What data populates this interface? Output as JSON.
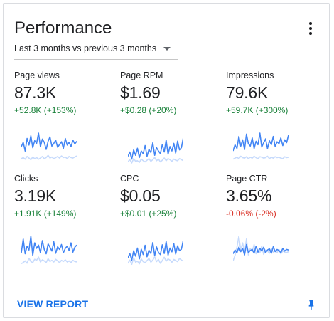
{
  "card": {
    "title": "Performance",
    "menu_icon": "more-vert-icon",
    "period": {
      "label": "Last 3 months vs previous 3 months",
      "icon": "dropdown-caret-icon"
    }
  },
  "colors": {
    "accent": "#1a73e8",
    "current_series": "#4285f4",
    "previous_series": "#c6dafc",
    "positive": "#188038",
    "negative": "#d93025"
  },
  "metrics": [
    {
      "label": "Page views",
      "value": "87.3K",
      "change": "+52.8K (+153%)",
      "trend": "positive",
      "current": [
        30,
        38,
        22,
        45,
        33,
        50,
        28,
        41,
        36,
        55,
        30,
        44,
        38,
        25,
        40,
        48,
        31,
        36,
        42,
        29,
        34,
        39,
        27,
        45,
        33,
        38,
        30,
        42,
        35,
        40
      ],
      "previous": [
        8,
        10,
        7,
        12,
        9,
        6,
        11,
        8,
        10,
        7,
        9,
        12,
        8,
        10,
        14,
        9,
        11,
        8,
        10,
        12,
        9,
        13,
        10,
        11,
        8,
        12,
        10,
        9,
        11,
        13
      ]
    },
    {
      "label": "Page RPM",
      "value": "$1.69",
      "change": "+$0.28 (+20%)",
      "trend": "positive",
      "current": [
        20,
        28,
        15,
        32,
        22,
        35,
        18,
        30,
        25,
        40,
        20,
        33,
        27,
        45,
        22,
        36,
        30,
        25,
        42,
        28,
        50,
        24,
        38,
        30,
        44,
        26,
        48,
        32,
        36,
        55
      ],
      "previous": [
        10,
        14,
        8,
        16,
        11,
        12,
        9,
        15,
        12,
        10,
        13,
        16,
        11,
        14,
        18,
        12,
        15,
        10,
        13,
        17,
        12,
        16,
        14,
        11,
        15,
        13,
        12,
        16,
        14,
        12
      ]
    },
    {
      "label": "Impressions",
      "value": "79.6K",
      "change": "+59.7K (+300%)",
      "trend": "positive",
      "current": [
        25,
        38,
        30,
        55,
        35,
        48,
        28,
        60,
        40,
        35,
        52,
        30,
        45,
        38,
        62,
        33,
        42,
        50,
        30,
        46,
        38,
        55,
        34,
        44,
        40,
        52,
        36,
        48,
        42,
        58
      ],
      "previous": [
        8,
        10,
        12,
        9,
        14,
        11,
        10,
        13,
        9,
        12,
        10,
        14,
        11,
        9,
        13,
        12,
        10,
        11,
        14,
        9,
        12,
        10,
        13,
        11,
        12,
        10,
        9,
        13,
        11,
        12
      ]
    },
    {
      "label": "Clicks",
      "value": "3.19K",
      "change": "+1.91K (+149%)",
      "trend": "positive",
      "current": [
        30,
        55,
        28,
        42,
        35,
        60,
        25,
        48,
        38,
        44,
        30,
        52,
        36,
        28,
        46,
        40,
        33,
        50,
        29,
        41,
        36,
        45,
        30,
        38,
        42,
        34,
        48,
        31,
        40,
        44
      ],
      "previous": [
        10,
        12,
        15,
        11,
        20,
        14,
        12,
        18,
        16,
        22,
        13,
        17,
        15,
        12,
        19,
        14,
        16,
        13,
        18,
        15,
        12,
        16,
        14,
        17,
        13,
        15,
        12,
        16,
        14,
        13
      ]
    },
    {
      "label": "CPC",
      "value": "$0.05",
      "change": "+$0.01 (+25%)",
      "trend": "positive",
      "current": [
        22,
        30,
        18,
        35,
        25,
        40,
        20,
        38,
        28,
        45,
        24,
        36,
        30,
        50,
        26,
        42,
        32,
        28,
        46,
        30,
        52,
        27,
        40,
        33,
        48,
        29,
        44,
        35,
        38,
        55
      ],
      "previous": [
        12,
        18,
        10,
        22,
        14,
        16,
        11,
        20,
        15,
        13,
        17,
        21,
        14,
        18,
        24,
        15,
        19,
        12,
        17,
        23,
        16,
        20,
        18,
        14,
        19,
        17,
        15,
        21,
        18,
        16
      ]
    },
    {
      "label": "Page CTR",
      "value": "3.65%",
      "change": "-0.06% (-2%)",
      "trend": "negative",
      "current": [
        28,
        35,
        30,
        40,
        32,
        38,
        26,
        45,
        30,
        34,
        36,
        29,
        42,
        31,
        38,
        33,
        40,
        30,
        35,
        37,
        29,
        41,
        32,
        36,
        34,
        30,
        38,
        33,
        36,
        35
      ],
      "previous": [
        15,
        25,
        40,
        60,
        35,
        48,
        30,
        55,
        26,
        38,
        32,
        45,
        28,
        36,
        30,
        42,
        27,
        35,
        33,
        29,
        38,
        31,
        34,
        30,
        36,
        28,
        33,
        31,
        30,
        32
      ]
    }
  ],
  "footer": {
    "view_report_label": "VIEW REPORT",
    "pin_icon": "pin-icon"
  }
}
